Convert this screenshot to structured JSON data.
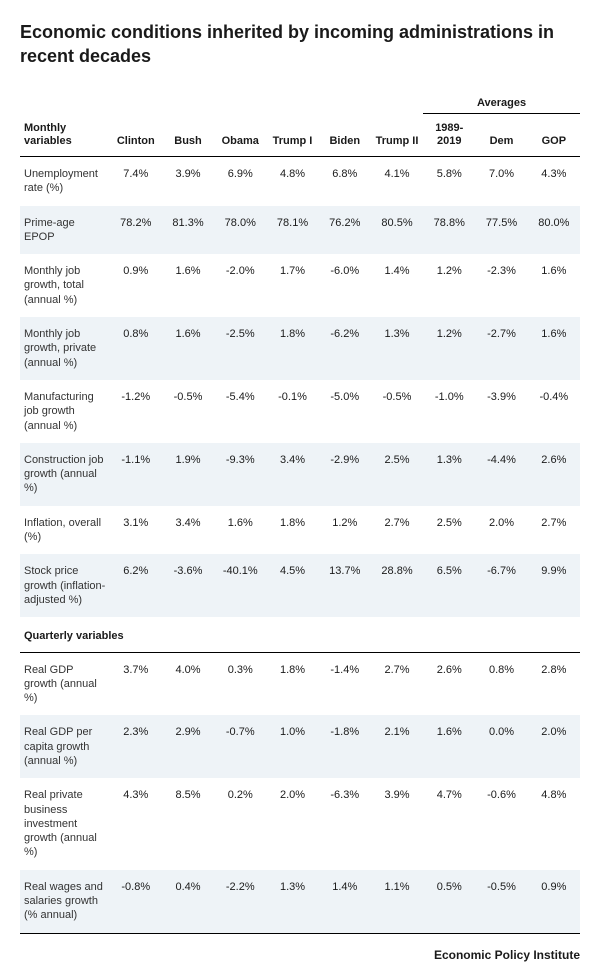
{
  "title": "Economic conditions inherited by incoming administrations in recent decades",
  "averages_group_label": "Averages",
  "header_rowlabel": "Monthly variables",
  "admins": [
    "Clinton",
    "Bush",
    "Obama",
    "Trump I",
    "Biden",
    "Trump II"
  ],
  "avg_cols": [
    "1989-2019",
    "Dem",
    "GOP"
  ],
  "section2_label": "Quarterly variables",
  "footer": "Economic Policy Institute",
  "rows_monthly": [
    {
      "label": "Unemployment rate (%)",
      "v": [
        "7.4%",
        "3.9%",
        "6.9%",
        "4.8%",
        "6.8%",
        "4.1%",
        "5.8%",
        "7.0%",
        "4.3%"
      ]
    },
    {
      "label": "Prime-age EPOP",
      "v": [
        "78.2%",
        "81.3%",
        "78.0%",
        "78.1%",
        "76.2%",
        "80.5%",
        "78.8%",
        "77.5%",
        "80.0%"
      ]
    },
    {
      "label": "Monthly job growth, total (annual %)",
      "v": [
        "0.9%",
        "1.6%",
        "-2.0%",
        "1.7%",
        "-6.0%",
        "1.4%",
        "1.2%",
        "-2.3%",
        "1.6%"
      ]
    },
    {
      "label": "Monthly job growth, private (annual %)",
      "v": [
        "0.8%",
        "1.6%",
        "-2.5%",
        "1.8%",
        "-6.2%",
        "1.3%",
        "1.2%",
        "-2.7%",
        "1.6%"
      ]
    },
    {
      "label": "Manufacturing job growth (annual %)",
      "v": [
        "-1.2%",
        "-0.5%",
        "-5.4%",
        "-0.1%",
        "-5.0%",
        "-0.5%",
        "-1.0%",
        "-3.9%",
        "-0.4%"
      ]
    },
    {
      "label": "Construction job growth (annual %)",
      "v": [
        "-1.1%",
        "1.9%",
        "-9.3%",
        "3.4%",
        "-2.9%",
        "2.5%",
        "1.3%",
        "-4.4%",
        "2.6%"
      ]
    },
    {
      "label": "Inflation, overall (%)",
      "v": [
        "3.1%",
        "3.4%",
        "1.6%",
        "1.8%",
        "1.2%",
        "2.7%",
        "2.5%",
        "2.0%",
        "2.7%"
      ]
    },
    {
      "label": "Stock price growth (inflation-adjusted %)",
      "v": [
        "6.2%",
        "-3.6%",
        "-40.1%",
        "4.5%",
        "13.7%",
        "28.8%",
        "6.5%",
        "-6.7%",
        "9.9%"
      ]
    }
  ],
  "rows_quarterly": [
    {
      "label": "Real GDP growth (annual %)",
      "v": [
        "3.7%",
        "4.0%",
        "0.3%",
        "1.8%",
        "-1.4%",
        "2.7%",
        "2.6%",
        "0.8%",
        "2.8%"
      ]
    },
    {
      "label": "Real GDP per capita growth (annual %)",
      "v": [
        "2.3%",
        "2.9%",
        "-0.7%",
        "1.0%",
        "-1.8%",
        "2.1%",
        "1.6%",
        "0.0%",
        "2.0%"
      ]
    },
    {
      "label": "Real private business investment growth (annual %)",
      "v": [
        "4.3%",
        "8.5%",
        "0.2%",
        "2.0%",
        "-6.3%",
        "3.9%",
        "4.7%",
        "-0.6%",
        "4.8%"
      ]
    },
    {
      "label": "Real wages and salaries growth (% annual)",
      "v": [
        "-0.8%",
        "0.4%",
        "-2.2%",
        "1.3%",
        "1.4%",
        "1.1%",
        "0.5%",
        "-0.5%",
        "0.9%"
      ]
    }
  ],
  "style": {
    "shade_bg": "#eef3f7",
    "bg": "#ffffff",
    "border": "#000000",
    "title_fontsize": 18,
    "body_fontsize": 11
  }
}
